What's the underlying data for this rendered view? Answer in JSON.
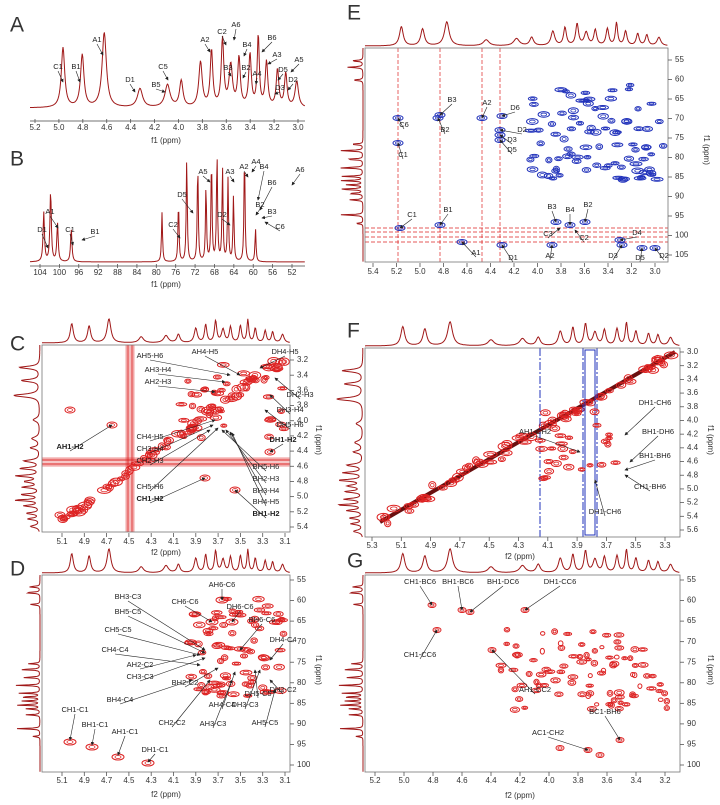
{
  "panels": [
    {
      "label": "A",
      "x_axis": {
        "title": "f1 (ppm)",
        "ticks": [
          "5.2",
          "5.0",
          "4.8",
          "4.6",
          "4.4",
          "4.2",
          "4.0",
          "3.8",
          "3.6",
          "3.4",
          "3.2",
          "3.0"
        ]
      },
      "annotations": [
        "C1",
        "B1",
        "A1",
        "D1",
        "C5",
        "B5",
        "A2",
        "C2",
        "A6",
        "B3",
        "B4",
        "B2",
        "A4",
        "B6",
        "A3",
        "D5",
        "D3",
        "A5",
        "D2"
      ]
    },
    {
      "label": "B",
      "x_axis": {
        "title": "f1 (ppm)",
        "ticks": [
          "104",
          "100",
          "96",
          "92",
          "88",
          "84",
          "80",
          "76",
          "72",
          "68",
          "64",
          "60",
          "56",
          "52"
        ]
      },
      "annotations": [
        "D1",
        "A1",
        "C1",
        "B1",
        "D5",
        "C2",
        "A5",
        "D2",
        "A3",
        "A2",
        "A4",
        "B4",
        "B6",
        "B2",
        "B3",
        "C6",
        "A6"
      ]
    },
    {
      "label": "C",
      "x_axis": {
        "title": "f2 (ppm)",
        "ticks": [
          "5.1",
          "4.9",
          "4.7",
          "4.5",
          "4.3",
          "4.1",
          "3.9",
          "3.7",
          "3.5",
          "3.3",
          "3.1"
        ]
      },
      "y_axis": {
        "title": "f1 (ppm)",
        "ticks": [
          "3.2",
          "3.4",
          "3.6",
          "3.8",
          "4.0",
          "4.2",
          "4.4",
          "4.6",
          "4.8",
          "5.0",
          "5.2",
          "5.4"
        ]
      },
      "annotations": [
        "AH5-H6",
        "AH4-H5",
        "DH4-H5",
        "AH3-H4",
        "AH2-H3",
        "DH2-H3",
        "DH3-H4",
        "DH5-H6",
        "DH1-H2",
        "AH1-H2",
        "CH4-H5",
        "CH3-H4",
        "CH2-H3",
        "CH5-H6",
        "CH1-H2",
        "BH5-H6",
        "BH2-H3",
        "BH3-H4",
        "BH4-H5",
        "BH1-H2"
      ]
    },
    {
      "label": "D",
      "x_axis": {
        "title": "f2 (ppm)",
        "ticks": [
          "5.1",
          "4.9",
          "4.7",
          "4.5",
          "4.3",
          "4.1",
          "3.9",
          "3.7",
          "3.5",
          "3.3",
          "3.1"
        ]
      },
      "y_axis": {
        "title": "f1 (ppm)",
        "ticks": [
          "55",
          "60",
          "65",
          "70",
          "75",
          "80",
          "85",
          "90",
          "95",
          "100"
        ]
      },
      "annotations": [
        "BH3-C3",
        "AH6-C6",
        "CH6-C6",
        "DH6-C6",
        "BH5-C5",
        "BH6-C6",
        "CH5-C5",
        "DH4-C4",
        "CH4-C4",
        "AH2-C2",
        "CH3-C3",
        "BH2-C2",
        "BH4-C4",
        "AH4-C4",
        "DH5-C5",
        "DH2-C2",
        "CH2-C2",
        "DH3-C3",
        "AH3-C3",
        "AH5-C5",
        "CH1-C1",
        "BH1-C1",
        "AH1-C1",
        "DH1-C1"
      ]
    },
    {
      "label": "E",
      "x_axis": {
        "ticks": [
          "5.4",
          "5.2",
          "5.0",
          "4.8",
          "4.6",
          "4.4",
          "4.2",
          "4.0",
          "3.8",
          "3.6",
          "3.4",
          "3.2",
          "3.0"
        ]
      },
      "y_axis": {
        "title": "f1 (ppm)",
        "ticks": [
          "55",
          "60",
          "65",
          "70",
          "75",
          "80",
          "85",
          "90",
          "95",
          "100",
          "105"
        ]
      },
      "annotations": [
        "B3",
        "A2",
        "D6",
        "C6",
        "B2",
        "D2",
        "D3",
        "D5",
        "C1",
        "C1",
        "B1",
        "B3",
        "B4",
        "B2",
        "C3",
        "C2",
        "A1",
        "D1",
        "A2",
        "D4",
        "D3",
        "D5",
        "D2"
      ]
    },
    {
      "label": "F",
      "x_axis": {
        "title": "f2 (ppm)",
        "ticks": [
          "5.3",
          "5.1",
          "4.9",
          "4.7",
          "4.5",
          "4.3",
          "4.1",
          "3.9",
          "3.7",
          "3.5",
          "3.3"
        ]
      },
      "y_axis": {
        "title": "f1 (ppm)",
        "ticks": [
          "3.0",
          "3.2",
          "3.4",
          "3.6",
          "3.8",
          "4.0",
          "4.2",
          "4.4",
          "4.6",
          "4.8",
          "5.0",
          "5.2",
          "5.4",
          "5.6"
        ]
      },
      "annotations": [
        "DH1-CH6",
        "AH1-CH2",
        "BH1-DH6",
        "BH1-BH6",
        "CH1-BH6",
        "DH1-CH6"
      ]
    },
    {
      "label": "G",
      "x_axis": {
        "title": "f2 (ppm)",
        "ticks": [
          "5.2",
          "5.0",
          "4.8",
          "4.6",
          "4.4",
          "4.2",
          "4.0",
          "3.8",
          "3.6",
          "3.4",
          "3.2"
        ]
      },
      "y_axis": {
        "title": "f1 (ppm)",
        "ticks": [
          "55",
          "60",
          "65",
          "70",
          "75",
          "80",
          "85",
          "90",
          "95",
          "100"
        ]
      },
      "annotations": [
        "CH1-BC6",
        "BH1-BC6",
        "BH1-DC6",
        "DH1-CC6",
        "CH1-CC6",
        "AH1-CC2",
        "BC1-BH6",
        "AC1-CH2"
      ]
    }
  ]
}
